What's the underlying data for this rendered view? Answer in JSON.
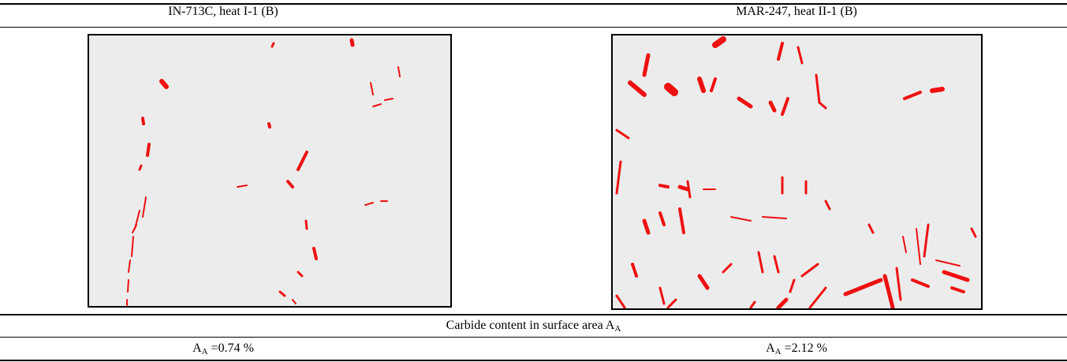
{
  "table": {
    "header": [
      "IN-713C, heat I-1 (B)",
      "MAR-247, heat II-1 (B)"
    ],
    "caption": {
      "text": "Carbide content in surface area A",
      "sub": "A"
    },
    "results": [
      {
        "symbol": "A",
        "sub": "A",
        "text": "=0.74 %"
      },
      {
        "symbol": "A",
        "sub": "A",
        "text": "=2.12 %"
      }
    ]
  }
}
